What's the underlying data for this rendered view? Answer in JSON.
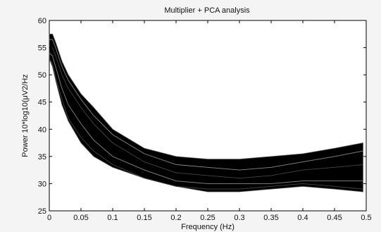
{
  "chart_data": {
    "type": "line",
    "title": "Multiplier + PCA analysis",
    "xlabel": "Frequency (Hz)",
    "ylabel": "Power 10*log10(μV2/Hz",
    "xlim": [
      0,
      0.5
    ],
    "ylim": [
      25,
      60
    ],
    "xticks": [
      "0",
      "0.05",
      "0.1",
      "0.15",
      "0.2",
      "0.25",
      "0.3",
      "0.35",
      "0.4",
      "0.45",
      "0.5"
    ],
    "yticks": [
      "25",
      "30",
      "35",
      "40",
      "45",
      "50",
      "55",
      "60"
    ],
    "grid": false,
    "legend": "none",
    "line_color": "#000000",
    "note": "Dense bundle of overlaid power-spectrum traces",
    "band": {
      "x": [
        0.0,
        0.005,
        0.01,
        0.02,
        0.03,
        0.05,
        0.07,
        0.1,
        0.15,
        0.2,
        0.25,
        0.3,
        0.35,
        0.4,
        0.45,
        0.495
      ],
      "upper": [
        57.5,
        57.5,
        56.0,
        52.5,
        50.0,
        46.5,
        44.0,
        40.0,
        36.5,
        35.0,
        34.5,
        34.5,
        35.0,
        35.5,
        36.5,
        37.5
      ],
      "lower": [
        53.0,
        51.5,
        49.0,
        44.5,
        41.5,
        37.5,
        35.0,
        33.0,
        31.0,
        29.5,
        28.5,
        28.5,
        29.0,
        29.5,
        29.0,
        28.5
      ]
    },
    "series": [
      {
        "x": [
          0.0,
          0.005,
          0.01,
          0.02,
          0.03,
          0.05,
          0.07,
          0.1,
          0.15,
          0.2,
          0.25,
          0.3,
          0.35,
          0.4,
          0.45,
          0.495
        ],
        "values": [
          56.5,
          56.5,
          55.0,
          51.5,
          49.0,
          45.5,
          42.5,
          39.0,
          35.5,
          33.5,
          33.0,
          32.5,
          33.0,
          34.0,
          35.0,
          36.0
        ]
      },
      {
        "x": [
          0.0,
          0.005,
          0.01,
          0.02,
          0.03,
          0.05,
          0.07,
          0.1,
          0.15,
          0.2,
          0.25,
          0.3,
          0.35,
          0.4,
          0.45,
          0.495
        ],
        "values": [
          55.0,
          55.0,
          53.5,
          50.0,
          47.5,
          44.0,
          41.0,
          37.5,
          34.0,
          32.0,
          31.5,
          31.0,
          31.5,
          32.5,
          33.0,
          33.5
        ]
      },
      {
        "x": [
          0.0,
          0.005,
          0.01,
          0.02,
          0.03,
          0.05,
          0.07,
          0.1,
          0.15,
          0.2,
          0.25,
          0.3,
          0.35,
          0.4,
          0.45,
          0.495
        ],
        "values": [
          54.0,
          53.5,
          51.5,
          47.5,
          44.5,
          41.0,
          38.0,
          35.0,
          32.5,
          30.5,
          30.0,
          30.0,
          30.0,
          30.5,
          30.5,
          30.5
        ]
      },
      {
        "x": [
          0.0,
          0.005,
          0.01,
          0.02,
          0.03,
          0.05,
          0.07,
          0.1,
          0.15,
          0.2,
          0.25,
          0.3,
          0.35,
          0.4,
          0.45,
          0.495
        ],
        "values": [
          53.0,
          52.0,
          49.5,
          45.5,
          42.0,
          38.5,
          36.0,
          33.5,
          31.0,
          29.5,
          29.0,
          29.0,
          29.5,
          30.0,
          29.5,
          29.0
        ]
      }
    ]
  }
}
